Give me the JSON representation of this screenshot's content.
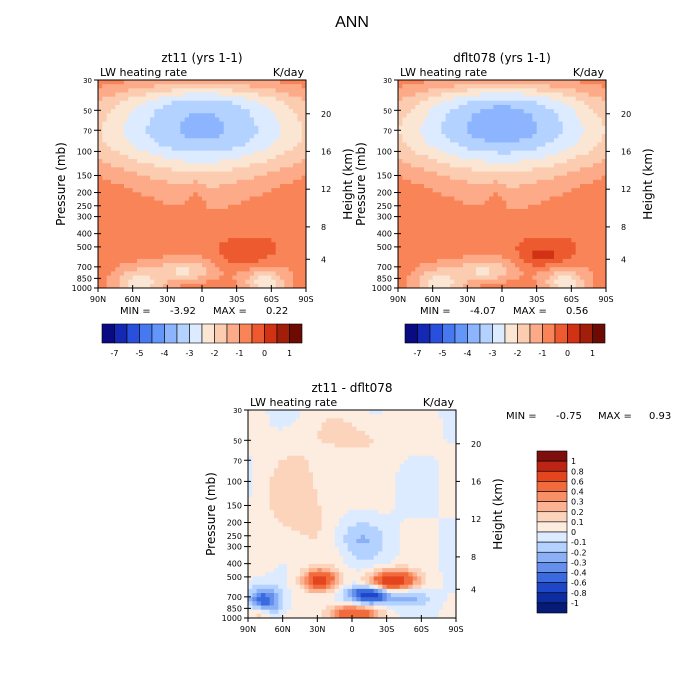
{
  "figure": {
    "title": "ANN"
  },
  "chart_data": [
    {
      "type": "heatmap",
      "title": "zt11 (yrs 1-1)",
      "left_label": "LW heating rate",
      "right_label": "K/day",
      "ylabel": "Pressure (mb)",
      "ylabel_right": "Height (km)",
      "x_ticks": [
        "90N",
        "60N",
        "30N",
        "0",
        "30S",
        "60S",
        "90S"
      ],
      "y_ticks": [
        "30",
        "50",
        "70",
        "100",
        "150",
        "200",
        "250",
        "300",
        "400",
        "500",
        "700",
        "850",
        "1000"
      ],
      "y_ticks_right": [
        "20",
        "16",
        "12",
        "8",
        "4"
      ],
      "ylim": [
        1000,
        30
      ],
      "xlim": [
        "90N",
        "90S"
      ],
      "min_label": "MIN =",
      "min_value": "-3.92",
      "max_label": "MAX =",
      "max_value": "0.22",
      "colorbar_labels": [
        "-7",
        "-5",
        "-4",
        "-3",
        "-2",
        "-1",
        "0",
        "1"
      ],
      "contour_levels": [
        -7,
        -6,
        -5,
        -4.5,
        -4,
        -3.5,
        -3,
        -2.5,
        -2,
        -1.5,
        -1,
        -0.5,
        0,
        0.5,
        1
      ],
      "features": [
        {
          "region": "cooling maximum near 100 mb over the equator",
          "approx_value": -3.9
        },
        {
          "region": "near-zero warming pocket near 850 mb, 20S-45S",
          "approx_value": 0.2
        }
      ]
    },
    {
      "type": "heatmap",
      "title": "dflt078 (yrs 1-1)",
      "left_label": "LW heating rate",
      "right_label": "K/day",
      "ylabel": "Pressure (mb)",
      "ylabel_right": "Height (km)",
      "x_ticks": [
        "90N",
        "60N",
        "30N",
        "0",
        "30S",
        "60S",
        "90S"
      ],
      "y_ticks": [
        "30",
        "50",
        "70",
        "100",
        "150",
        "200",
        "250",
        "300",
        "400",
        "500",
        "700",
        "850",
        "1000"
      ],
      "y_ticks_right": [
        "20",
        "16",
        "12",
        "8",
        "4"
      ],
      "ylim": [
        1000,
        30
      ],
      "xlim": [
        "90N",
        "90S"
      ],
      "min_label": "MIN =",
      "min_value": "-4.07",
      "max_label": "MAX =",
      "max_value": "0.56",
      "colorbar_labels": [
        "-7",
        "-5",
        "-4",
        "-3",
        "-2",
        "-1",
        "0",
        "1"
      ],
      "contour_levels": [
        -7,
        -6,
        -5,
        -4.5,
        -4,
        -3.5,
        -3,
        -2.5,
        -2,
        -1.5,
        -1,
        -0.5,
        0,
        0.5,
        1
      ],
      "features": [
        {
          "region": "cooling maximum near 100 mb over the equator",
          "approx_value": -4.07
        },
        {
          "region": "warming pocket near 850 mb, 20S-45S",
          "approx_value": 0.56
        }
      ]
    },
    {
      "type": "heatmap",
      "title": "zt11 - dflt078",
      "left_label": "LW heating rate",
      "right_label": "K/day",
      "ylabel": "Pressure (mb)",
      "ylabel_right": "Height (km)",
      "x_ticks": [
        "90N",
        "60N",
        "30N",
        "0",
        "30S",
        "60S",
        "90S"
      ],
      "y_ticks": [
        "30",
        "50",
        "70",
        "100",
        "150",
        "200",
        "250",
        "300",
        "400",
        "500",
        "700",
        "850",
        "1000"
      ],
      "y_ticks_right": [
        "20",
        "16",
        "12",
        "8",
        "4"
      ],
      "ylim": [
        1000,
        30
      ],
      "xlim": [
        "90N",
        "90S"
      ],
      "min_label": "MIN =",
      "min_value": "-0.75",
      "max_label": "MAX =",
      "max_value": "0.93",
      "colorbar_labels": [
        "1",
        "0.8",
        "0.6",
        "0.4",
        "0.3",
        "0.2",
        "0.1",
        "0",
        "-0.1",
        "-0.2",
        "-0.3",
        "-0.4",
        "-0.6",
        "-0.8",
        "-1"
      ],
      "contour_levels": [
        1,
        0.8,
        0.6,
        0.4,
        0.3,
        0.2,
        0.1,
        0,
        -0.1,
        -0.2,
        -0.3,
        -0.4,
        -0.6,
        -0.8,
        -1
      ],
      "features": [
        {
          "region": "positive difference near 800 mb, 30S-40S",
          "approx_value": 0.93
        },
        {
          "region": "negative difference near 850 mb, 15S",
          "approx_value": -0.75
        },
        {
          "region": "negative band 200-300 mb near 5S",
          "approx_value": -0.3
        }
      ]
    }
  ],
  "colors": {
    "seq_blue_red": [
      "#0a0a82",
      "#1428b4",
      "#2850dc",
      "#4678f0",
      "#6496fa",
      "#8cb4ff",
      "#b4d2ff",
      "#dcebff",
      "#fae6d2",
      "#fcccb0",
      "#fcaa88",
      "#f88458",
      "#ee5a30",
      "#d23214",
      "#a01e0a",
      "#6e0a04"
    ],
    "diff_colors": [
      "#7d0f0f",
      "#bd2413",
      "#e3451e",
      "#f26b3c",
      "#f88f66",
      "#fbb393",
      "#fcd4bc",
      "#fdece0",
      "#dcebff",
      "#b4d2ff",
      "#8cb0f5",
      "#6490ec",
      "#3a6ae0",
      "#1e46c8",
      "#0c2ca0",
      "#061a78"
    ]
  }
}
